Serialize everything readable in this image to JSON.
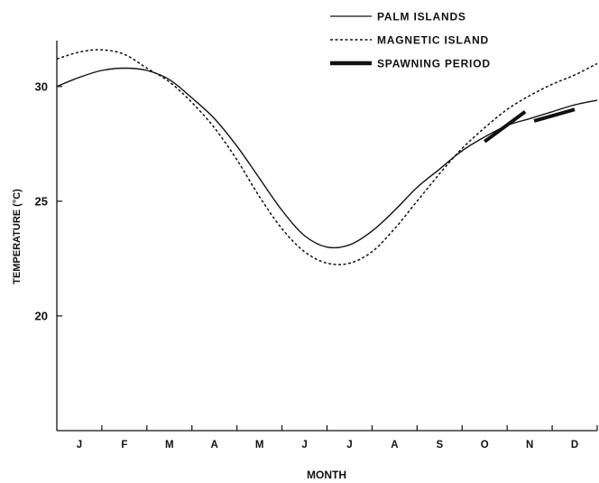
{
  "chart_data": {
    "type": "line",
    "xlabel": "MONTH",
    "ylabel": "TEMPERATURE (°C)",
    "categories": [
      "J",
      "F",
      "M",
      "A",
      "M",
      "J",
      "J",
      "A",
      "S",
      "O",
      "N",
      "D"
    ],
    "x_unit": "month",
    "ylim": [
      15,
      32
    ],
    "yticks": [
      20,
      25,
      30
    ],
    "grid": false,
    "legend_position": "top-right",
    "series": [
      {
        "name": "PALM ISLANDS",
        "style": "solid",
        "x": [
          0,
          0.5,
          1,
          1.5,
          2,
          2.5,
          3,
          3.5,
          4,
          4.5,
          5,
          5.5,
          6,
          6.5,
          7,
          7.5,
          8,
          8.5,
          9,
          9.5,
          10,
          10.5,
          11,
          11.5,
          12
        ],
        "values": [
          30.0,
          30.4,
          30.7,
          30.8,
          30.7,
          30.3,
          29.5,
          28.6,
          27.4,
          26.0,
          24.6,
          23.5,
          23.0,
          23.1,
          23.7,
          24.6,
          25.6,
          26.4,
          27.2,
          27.8,
          28.3,
          28.6,
          28.9,
          29.2,
          29.4
        ]
      },
      {
        "name": "MAGNETIC ISLAND",
        "style": "dashed",
        "x": [
          0,
          0.5,
          1,
          1.5,
          2,
          2.5,
          3,
          3.5,
          4,
          4.5,
          5,
          5.5,
          6,
          6.5,
          7,
          7.5,
          8,
          8.5,
          9,
          9.5,
          10,
          10.5,
          11,
          11.5,
          12
        ],
        "values": [
          31.2,
          31.5,
          31.6,
          31.4,
          30.8,
          30.2,
          29.3,
          28.2,
          26.8,
          25.2,
          23.8,
          22.8,
          22.3,
          22.3,
          22.8,
          23.8,
          25.0,
          26.2,
          27.3,
          28.2,
          29.0,
          29.6,
          30.1,
          30.5,
          31.0
        ]
      }
    ],
    "spawning_period": {
      "name": "SPAWNING PERIOD",
      "segments": [
        {
          "x": [
            9.5,
            10.4
          ],
          "values": [
            27.6,
            28.9
          ]
        },
        {
          "x": [
            10.6,
            11.5
          ],
          "values": [
            28.5,
            29.0
          ]
        }
      ]
    },
    "legend": [
      {
        "label": "PALM ISLANDS",
        "style": "solid"
      },
      {
        "label": "MAGNETIC ISLAND",
        "style": "dashed"
      },
      {
        "label": "SPAWNING PERIOD",
        "style": "thick"
      }
    ],
    "colors": {
      "line": "#111111",
      "axis": "#111111",
      "background": "#ffffff"
    }
  }
}
